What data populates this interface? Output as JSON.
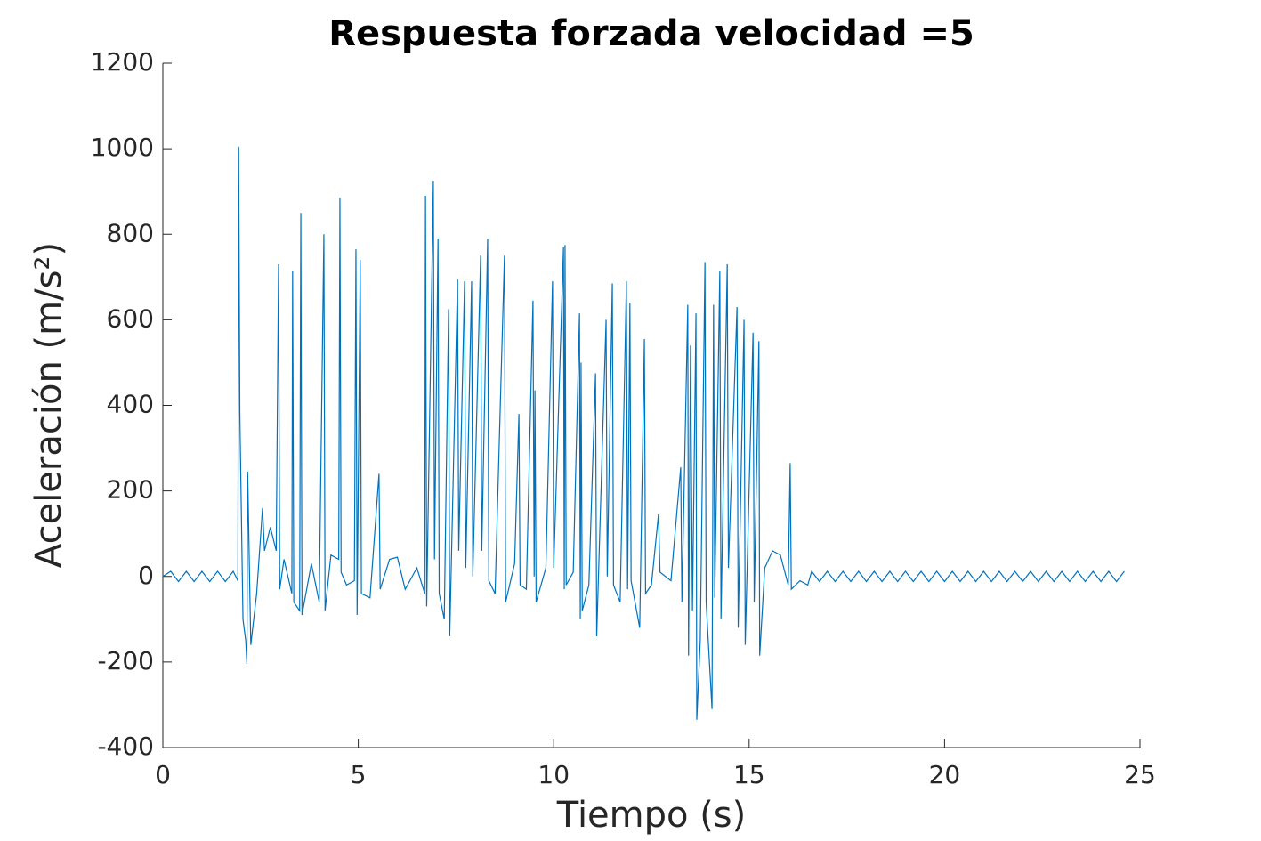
{
  "chart_data": {
    "type": "line",
    "title": "Respuesta forzada velocidad =5",
    "xlabel": "Tiempo (s)",
    "ylabel": "Aceleración (m/s²)",
    "xlim": [
      0,
      25
    ],
    "xticks": [
      0,
      5,
      10,
      15,
      20,
      25
    ],
    "ylim": [
      -400,
      1200
    ],
    "yticks": [
      -400,
      -200,
      0,
      200,
      400,
      600,
      800,
      1000,
      1200
    ],
    "grid": false,
    "series": [
      {
        "color": "#0072bd",
        "x": [
          0,
          0.2,
          0.4,
          0.6,
          0.8,
          1.0,
          1.2,
          1.4,
          1.6,
          1.8,
          1.92,
          1.94,
          1.97,
          2.05,
          2.12,
          2.15,
          2.17,
          2.25,
          2.4,
          2.55,
          2.6,
          2.75,
          2.9,
          2.96,
          2.99,
          3.1,
          3.3,
          3.32,
          3.35,
          3.5,
          3.53,
          3.56,
          3.8,
          4.0,
          4.12,
          4.15,
          4.3,
          4.5,
          4.53,
          4.56,
          4.7,
          4.9,
          4.94,
          4.97,
          5.05,
          5.08,
          5.3,
          5.53,
          5.56,
          5.8,
          6.0,
          6.2,
          6.5,
          6.7,
          6.72,
          6.75,
          6.92,
          6.95,
          7.04,
          7.07,
          7.2,
          7.31,
          7.34,
          7.54,
          7.57,
          7.72,
          7.75,
          7.9,
          7.93,
          8.13,
          8.16,
          8.31,
          8.34,
          8.5,
          8.74,
          8.77,
          9.0,
          9.11,
          9.14,
          9.3,
          9.47,
          9.5,
          9.52,
          9.55,
          9.8,
          9.97,
          10.0,
          10.25,
          10.27,
          10.29,
          10.32,
          10.5,
          10.66,
          10.68,
          10.7,
          10.73,
          10.9,
          11.07,
          11.1,
          11.34,
          11.37,
          11.5,
          11.53,
          11.7,
          11.86,
          11.89,
          11.95,
          11.98,
          12.2,
          12.32,
          12.35,
          12.5,
          12.68,
          12.72,
          13.0,
          13.25,
          13.28,
          13.43,
          13.45,
          13.5,
          13.55,
          13.64,
          13.66,
          13.75,
          13.87,
          13.9,
          14.05,
          14.09,
          14.12,
          14.25,
          14.28,
          14.44,
          14.47,
          14.69,
          14.72,
          14.87,
          14.9,
          15.1,
          15.13,
          15.25,
          15.27,
          15.4,
          15.6,
          15.8,
          16.0,
          16.05,
          16.08,
          16.3,
          16.5,
          16.6,
          16.8,
          17.0,
          17.2,
          17.4,
          17.6,
          17.8,
          18.0,
          18.2,
          18.4,
          18.6,
          18.8,
          19.0,
          19.2,
          19.4,
          19.6,
          19.8,
          20.0,
          20.2,
          20.4,
          20.6,
          20.8,
          21.0,
          21.2,
          21.4,
          21.6,
          21.8,
          22.0,
          22.2,
          22.4,
          22.6,
          22.8,
          23.0,
          23.2,
          23.4,
          23.6,
          23.8,
          24.0,
          24.2,
          24.4,
          24.6
        ],
        "values": [
          0,
          12,
          -12,
          12,
          -12,
          12,
          -12,
          12,
          -12,
          12,
          -10,
          1005,
          380,
          -100,
          -150,
          -205,
          245,
          -160,
          -40,
          160,
          60,
          115,
          60,
          730,
          -30,
          40,
          -40,
          715,
          -60,
          -80,
          850,
          -90,
          30,
          -60,
          800,
          -80,
          50,
          40,
          885,
          10,
          -20,
          -10,
          765,
          -90,
          740,
          -40,
          -50,
          240,
          -30,
          40,
          45,
          -30,
          20,
          -40,
          890,
          -70,
          925,
          40,
          790,
          -40,
          -100,
          625,
          -140,
          695,
          60,
          690,
          20,
          690,
          0,
          750,
          60,
          790,
          -10,
          -40,
          750,
          -60,
          30,
          380,
          -20,
          -30,
          645,
          0,
          435,
          -60,
          20,
          690,
          20,
          770,
          -30,
          775,
          -20,
          10,
          615,
          -100,
          500,
          -80,
          -20,
          475,
          -140,
          600,
          0,
          685,
          -20,
          -60,
          690,
          -30,
          640,
          -10,
          -120,
          555,
          -40,
          -20,
          145,
          10,
          -10,
          255,
          -60,
          635,
          -185,
          540,
          -80,
          615,
          -335,
          -150,
          735,
          -60,
          -310,
          635,
          -50,
          715,
          -100,
          730,
          20,
          630,
          -120,
          600,
          -160,
          570,
          -60,
          550,
          -185,
          20,
          60,
          50,
          -20,
          265,
          -30,
          -10,
          -20,
          12,
          -12,
          12,
          -12,
          12,
          -12,
          12,
          -12,
          12,
          -12,
          12,
          -12,
          12,
          -12,
          12,
          -12,
          12,
          -12,
          12,
          -12,
          12,
          -12,
          12,
          -12,
          12,
          -12,
          12,
          -12,
          12,
          -12,
          12,
          -12,
          12,
          -12,
          12,
          -12,
          12,
          -12,
          12,
          -12,
          12
        ]
      }
    ]
  }
}
